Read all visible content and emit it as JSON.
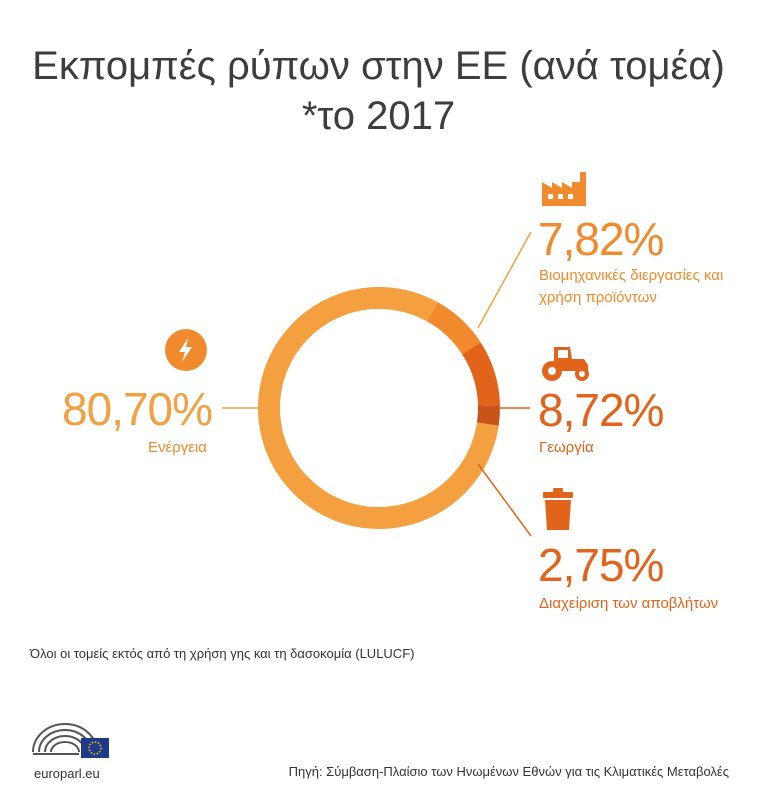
{
  "title": {
    "line1": "Εκπομπές ρύπων στην ΕΕ (ανά τομέα)",
    "line2": "*το 2017"
  },
  "chart_data": {
    "type": "pie",
    "donut": true,
    "slices": [
      {
        "label": "Ενέργεια",
        "display": "80,70%",
        "value": 80.7,
        "color": "#f5a040",
        "icon": "lightning-icon"
      },
      {
        "label": "Βιομηχανικές διεργασίες και χρήση προϊόντων",
        "display": "7,82%",
        "value": 7.82,
        "color": "#f08a2c",
        "icon": "factory-icon"
      },
      {
        "label": "Γεωργία",
        "display": "8,72%",
        "value": 8.72,
        "color": "#e2641a",
        "icon": "tractor-icon"
      },
      {
        "label": "Διαχείριση των αποβλήτων",
        "display": "2,75%",
        "value": 2.75,
        "color": "#c9541a",
        "icon": "trash-bin-icon"
      }
    ]
  },
  "labels": {
    "energy_pct": "80,70%",
    "energy_label": "Ενέργεια",
    "industry_pct": "7,82%",
    "industry_label_1": "Βιομηχανικές διεργασίες και",
    "industry_label_2": "χρήση προϊόντων",
    "agri_pct": "8,72%",
    "agri_label": "Γεωργία",
    "waste_pct": "2,75%",
    "waste_label": "Διαχείριση των αποβλήτων"
  },
  "footnote": "Όλοι οι τομείς εκτός από τη χρήση γης και τη δασοκομία (LULUCF)",
  "source": "Πηγή: Σύμβαση-Πλαίσιο των Ηνωμένων Εθνών για τις Κλιματικές Μεταβολές",
  "logo": {
    "text": "europarl.eu",
    "icon": "european-parliament-logo-icon"
  },
  "colors": {
    "energy": "#f5a040",
    "industry": "#f08a2c",
    "agri": "#e2641a",
    "waste": "#c9541a",
    "title": "#3d3d3d"
  }
}
